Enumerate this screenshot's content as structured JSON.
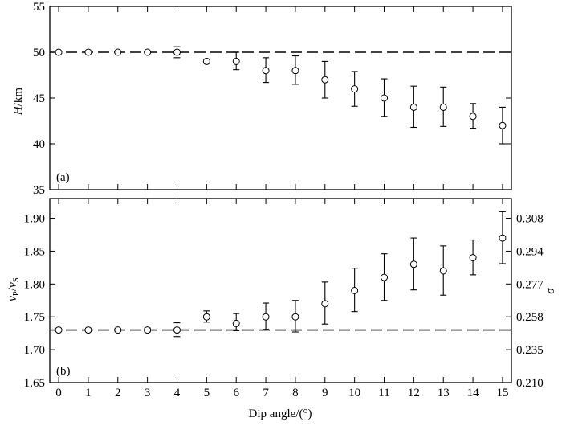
{
  "chart_data": [
    {
      "type": "scatter",
      "panel_label": "(a)",
      "ylabel": "H/km",
      "ylim": [
        35,
        55
      ],
      "yticks": [
        35,
        40,
        45,
        50,
        55
      ],
      "xlim": [
        -0.3,
        15.3
      ],
      "reference_line": {
        "y": 50,
        "style": "dashed"
      },
      "x": [
        0,
        1,
        2,
        3,
        4,
        5,
        6,
        7,
        8,
        9,
        10,
        11,
        12,
        13,
        14,
        15
      ],
      "values": [
        50,
        50,
        50,
        50,
        50,
        49,
        49,
        48,
        48,
        47,
        46,
        45,
        44,
        44,
        43,
        42
      ],
      "error_low": [
        50,
        50,
        50,
        50,
        49.4,
        48.8,
        48.1,
        46.7,
        46.5,
        45,
        44.1,
        43,
        41.8,
        41.9,
        41.7,
        40
      ],
      "error_high": [
        50,
        50,
        50,
        50,
        50.6,
        49.2,
        50,
        49.4,
        49.6,
        49,
        47.9,
        47.1,
        46.3,
        46.2,
        44.4,
        44
      ],
      "grid": false
    },
    {
      "type": "scatter",
      "panel_label": "(b)",
      "ylabel_left": "vP/vS",
      "ylabel_right": "σ",
      "ylim": [
        1.65,
        1.93
      ],
      "yticks": [
        "1.65",
        "1.70",
        "1.75",
        "1.80",
        "1.85",
        "1.90"
      ],
      "right_ticks": [
        "0.210",
        "0.235",
        "0.258",
        "0.277",
        "0.294",
        "0.308"
      ],
      "right_tick_positions": [
        1.65,
        1.7,
        1.75,
        1.8,
        1.85,
        1.9
      ],
      "xlim": [
        -0.3,
        15.3
      ],
      "reference_line": {
        "y": 1.73,
        "style": "dashed"
      },
      "x": [
        0,
        1,
        2,
        3,
        4,
        5,
        6,
        7,
        8,
        9,
        10,
        11,
        12,
        13,
        14,
        15
      ],
      "values": [
        1.73,
        1.73,
        1.73,
        1.73,
        1.73,
        1.75,
        1.74,
        1.75,
        1.75,
        1.77,
        1.79,
        1.81,
        1.83,
        1.82,
        1.84,
        1.87
      ],
      "error_low": [
        1.73,
        1.73,
        1.728,
        1.727,
        1.72,
        1.742,
        1.729,
        1.731,
        1.727,
        1.739,
        1.758,
        1.775,
        1.791,
        1.783,
        1.814,
        1.831
      ],
      "error_high": [
        1.73,
        1.73,
        1.732,
        1.733,
        1.741,
        1.759,
        1.755,
        1.771,
        1.775,
        1.803,
        1.824,
        1.846,
        1.87,
        1.858,
        1.867,
        1.91
      ],
      "xlabel": "Dip angle/(°)",
      "xticks": [
        "0",
        "1",
        "2",
        "3",
        "4",
        "5",
        "6",
        "7",
        "8",
        "9",
        "10",
        "11",
        "12",
        "13",
        "14",
        "15"
      ],
      "grid": false
    }
  ],
  "labels": {
    "panel_a": "(a)",
    "panel_b": "(b)",
    "ylabel_a_var": "H",
    "ylabel_a_unit": "/km",
    "ylabel_b_v1": "v",
    "ylabel_b_s1": "P",
    "ylabel_b_slash": "/",
    "ylabel_b_v2": "v",
    "ylabel_b_s2": "S",
    "ylabel_right": "σ",
    "xlabel": "Dip angle/(°)"
  }
}
